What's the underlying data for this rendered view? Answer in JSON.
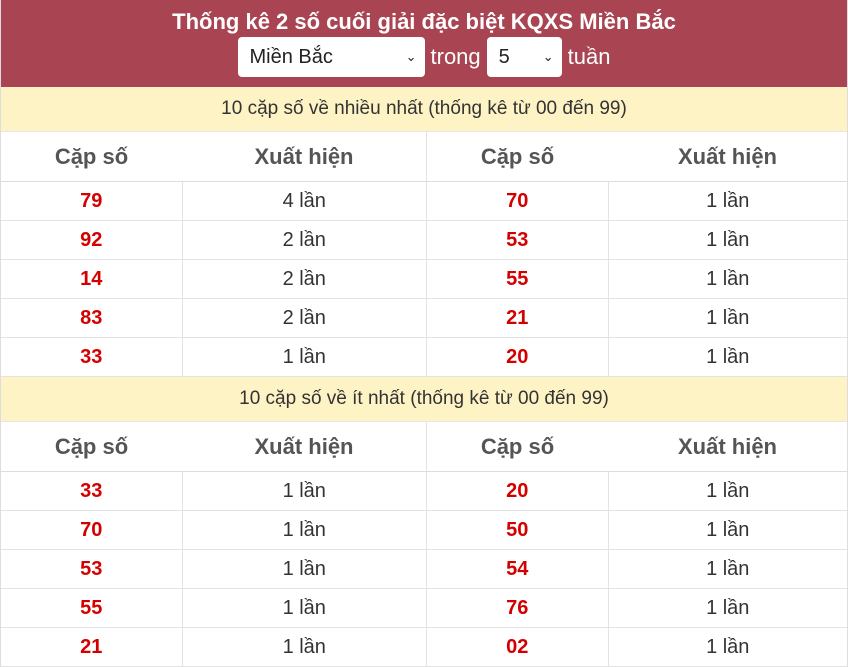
{
  "header": {
    "title": "Thống kê 2 số cuối giải đặc biệt KQXS Miền Bắc",
    "region_select": "Miền Bắc",
    "trong": "trong",
    "weeks_select": "5",
    "tuan": "tuần",
    "bg_color": "#a94452"
  },
  "columns": [
    "Cặp số",
    "Xuất hiện",
    "Cặp số",
    "Xuất hiện"
  ],
  "most": {
    "title": "10 cặp số về nhiều nhất (thống kê từ 00 đến 99)",
    "rows": [
      [
        "79",
        "4 lần",
        "70",
        "1 lần"
      ],
      [
        "92",
        "2 lần",
        "53",
        "1 lần"
      ],
      [
        "14",
        "2 lần",
        "55",
        "1 lần"
      ],
      [
        "83",
        "2 lần",
        "21",
        "1 lần"
      ],
      [
        "33",
        "1 lần",
        "20",
        "1 lần"
      ]
    ]
  },
  "least": {
    "title": "10 cặp số về ít nhất (thống kê từ 00 đến 99)",
    "rows": [
      [
        "33",
        "1 lần",
        "20",
        "1 lần"
      ],
      [
        "70",
        "1 lần",
        "50",
        "1 lần"
      ],
      [
        "53",
        "1 lần",
        "54",
        "1 lần"
      ],
      [
        "55",
        "1 lần",
        "76",
        "1 lần"
      ],
      [
        "21",
        "1 lần",
        "02",
        "1 lần"
      ]
    ]
  }
}
